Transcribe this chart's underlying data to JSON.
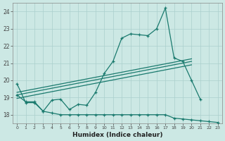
{
  "xlabel": "Humidex (Indice chaleur)",
  "x_main": [
    0,
    1,
    2,
    3,
    4,
    5,
    6,
    7,
    8,
    9,
    10,
    11,
    12,
    13,
    14,
    15,
    16,
    17,
    18,
    19,
    20,
    21
  ],
  "y_main": [
    19.8,
    18.7,
    18.7,
    18.2,
    18.85,
    18.9,
    18.3,
    18.6,
    18.55,
    19.3,
    20.4,
    21.1,
    22.45,
    22.7,
    22.65,
    22.6,
    23.0,
    24.2,
    21.3,
    21.1,
    20.0,
    18.9
  ],
  "x_bottom": [
    0,
    1,
    2,
    3,
    4,
    5,
    6,
    7,
    8,
    9,
    10,
    11,
    12,
    13,
    14,
    15,
    16,
    17,
    18,
    19,
    20,
    21,
    22,
    23
  ],
  "y_bottom": [
    19.15,
    18.75,
    18.75,
    18.2,
    18.1,
    18.0,
    18.0,
    18.0,
    18.0,
    18.0,
    18.0,
    18.0,
    18.0,
    18.0,
    18.0,
    18.0,
    18.0,
    18.0,
    17.8,
    17.75,
    17.7,
    17.65,
    17.6,
    17.55
  ],
  "trend1_x": [
    0,
    20
  ],
  "trend1_y": [
    19.15,
    21.1
  ],
  "trend2_x": [
    0,
    20
  ],
  "trend2_y": [
    19.3,
    21.25
  ],
  "trend3_x": [
    0,
    20
  ],
  "trend3_y": [
    18.95,
    20.9
  ],
  "color": "#1a7a6e",
  "bg_color": "#cce8e4",
  "grid_color": "#aacfcc",
  "ylim": [
    17.5,
    24.5
  ],
  "xlim": [
    -0.5,
    23.5
  ],
  "yticks": [
    18,
    19,
    20,
    21,
    22,
    23,
    24
  ],
  "xtick_labels": [
    "0",
    "1",
    "2",
    "3",
    "4",
    "5",
    "6",
    "7",
    "8",
    "9",
    "10",
    "11",
    "12",
    "13",
    "14",
    "15",
    "16",
    "17",
    "18",
    "19",
    "20",
    "21",
    "22",
    "23"
  ]
}
